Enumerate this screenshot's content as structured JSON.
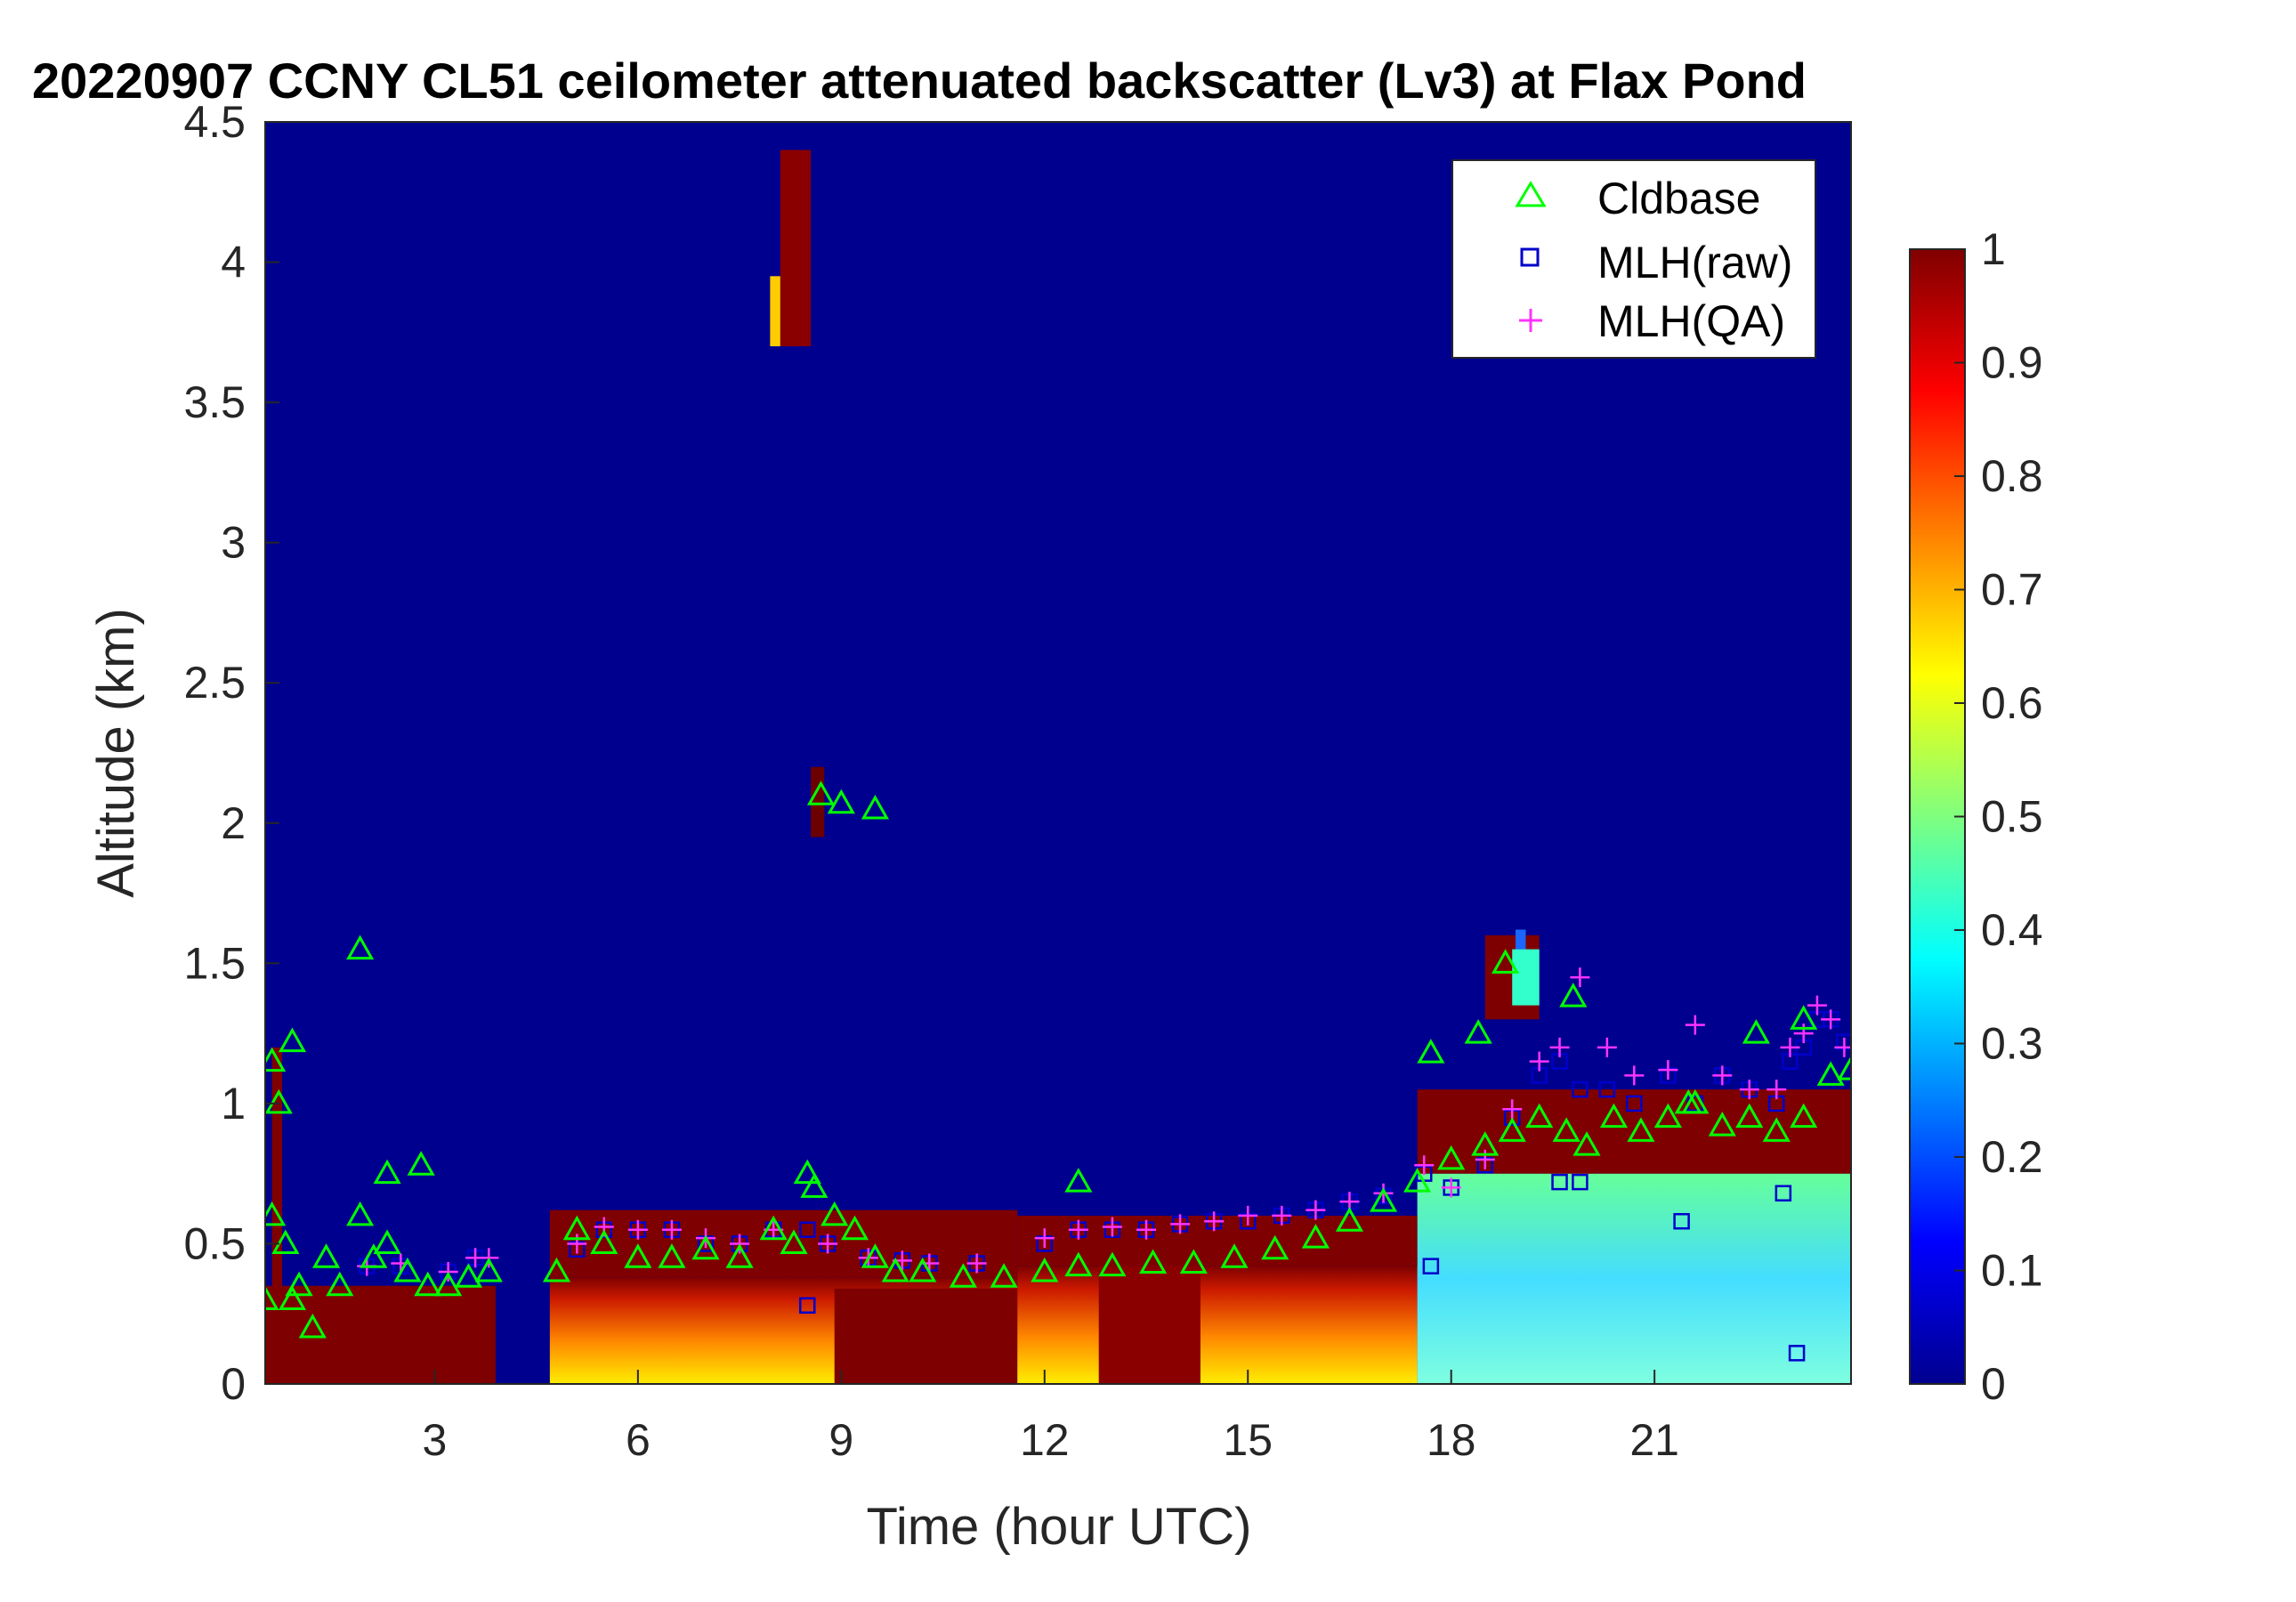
{
  "chart_data": {
    "type": "heatmap",
    "title": "20220907 CCNY CL51 ceilometer attenuated backscatter (Lv3) at Flax Pond",
    "xlabel": "Time (hour UTC)",
    "ylabel": "Altitude (km)",
    "xlim": [
      0.5,
      23.9
    ],
    "ylim": [
      0,
      4.5
    ],
    "xticks": [
      "3",
      "6",
      "9",
      "12",
      "15",
      "18",
      "21"
    ],
    "yticks": [
      "0",
      "0.5",
      "1",
      "1.5",
      "2",
      "2.5",
      "3",
      "3.5",
      "4",
      "4.5"
    ],
    "colorbar": {
      "range": [
        0,
        1
      ],
      "colormap": "jet",
      "ticks": [
        "0",
        "0.1",
        "0.2",
        "0.3",
        "0.4",
        "0.5",
        "0.6",
        "0.7",
        "0.8",
        "0.9",
        "1"
      ]
    },
    "legend": {
      "placement": "top-right",
      "entries": [
        {
          "label": "Cldbase",
          "marker": "triangle",
          "color": "#00ff00"
        },
        {
          "label": "MLH(raw)",
          "marker": "square",
          "color": "#0000cc"
        },
        {
          "label": "MLH(QA)",
          "marker": "plus",
          "color": "#ff33ff"
        }
      ]
    },
    "series": [
      {
        "name": "Cldbase",
        "x": [
          0.5,
          0.6,
          0.7,
          0.8,
          0.9,
          1.0,
          1.2,
          1.4,
          1.6,
          1.9,
          2.1,
          2.3,
          2.6,
          2.9,
          3.2,
          3.5,
          3.8,
          4.8,
          5.1,
          5.5,
          6.0,
          6.5,
          7.0,
          7.5,
          8.0,
          8.3,
          8.6,
          8.9,
          9.2,
          9.5,
          9.8,
          10.2,
          10.8,
          11.4,
          12.0,
          12.5,
          13.0,
          13.6,
          14.2,
          14.8,
          15.4,
          16.0,
          16.5,
          17.0,
          17.5,
          18.0,
          18.5,
          18.9,
          19.3,
          19.7,
          20.0,
          20.4,
          20.8,
          21.2,
          21.6,
          22.0,
          22.4,
          22.8,
          23.2,
          23.6,
          23.9,
          0.6,
          0.9,
          1.9,
          2.3,
          2.8,
          8.5,
          8.7,
          9.0,
          9.5,
          12.5,
          17.7,
          18.4,
          18.8,
          19.8,
          21.5,
          22.5,
          23.2
        ],
        "y": [
          0.3,
          0.6,
          1.0,
          0.5,
          0.3,
          0.35,
          0.2,
          0.45,
          0.35,
          0.6,
          0.45,
          0.5,
          0.4,
          0.35,
          0.35,
          0.38,
          0.4,
          0.4,
          0.55,
          0.5,
          0.45,
          0.45,
          0.48,
          0.45,
          0.55,
          0.5,
          0.7,
          0.6,
          0.55,
          0.45,
          0.4,
          0.4,
          0.38,
          0.38,
          0.4,
          0.42,
          0.42,
          0.43,
          0.43,
          0.45,
          0.48,
          0.52,
          0.58,
          0.65,
          0.72,
          0.8,
          0.85,
          0.9,
          0.95,
          0.9,
          0.85,
          0.95,
          0.9,
          0.95,
          1.0,
          0.92,
          0.95,
          0.9,
          0.95,
          1.1,
          1.12,
          1.15,
          1.22,
          1.55,
          0.75,
          0.78,
          0.75,
          2.1,
          2.07,
          2.05,
          0.72,
          1.18,
          1.25,
          1.5,
          1.38,
          1.0,
          1.25,
          1.3
        ],
        "__comment": ""
      },
      {
        "name": "MLH(raw)",
        "x": [
          2.0,
          2.5,
          3.2,
          3.6,
          5.1,
          5.5,
          6.0,
          6.5,
          7.0,
          7.5,
          8.0,
          8.5,
          8.8,
          9.4,
          9.9,
          10.3,
          11.0,
          12.0,
          12.5,
          13.0,
          13.5,
          14.0,
          14.5,
          15.0,
          15.5,
          16.0,
          16.5,
          17.0,
          17.6,
          18.0,
          18.5,
          18.9,
          19.3,
          19.6,
          19.9,
          20.3,
          20.7,
          21.2,
          21.6,
          22.0,
          22.4,
          22.8,
          23.0,
          23.2,
          23.4,
          23.6,
          23.8,
          8.5,
          17.7,
          19.6,
          19.9,
          21.4,
          22.9,
          23.1
        ],
        "y": [
          0.42,
          0.42,
          0.4,
          0.45,
          0.48,
          0.55,
          0.55,
          0.55,
          0.5,
          0.5,
          0.55,
          0.55,
          0.5,
          0.45,
          0.44,
          0.43,
          0.43,
          0.5,
          0.55,
          0.55,
          0.55,
          0.57,
          0.58,
          0.58,
          0.6,
          0.62,
          0.65,
          0.67,
          0.75,
          0.7,
          0.78,
          0.95,
          1.1,
          1.15,
          1.05,
          1.05,
          1.0,
          1.1,
          1.0,
          1.1,
          1.05,
          1.0,
          1.15,
          1.2,
          1.3,
          1.3,
          1.22,
          0.28,
          0.42,
          0.72,
          0.72,
          0.58,
          0.68,
          0.11
        ]
      },
      {
        "name": "MLH(QA)",
        "x": [
          2.0,
          2.5,
          3.2,
          3.6,
          3.8,
          5.1,
          5.5,
          6.0,
          6.5,
          7.0,
          7.5,
          8.0,
          8.8,
          9.4,
          9.9,
          10.3,
          11.0,
          12.0,
          12.5,
          13.0,
          13.5,
          14.0,
          14.5,
          15.0,
          15.5,
          16.0,
          16.5,
          17.0,
          17.6,
          18.0,
          18.5,
          18.9,
          19.3,
          19.6,
          19.9,
          20.3,
          20.7,
          21.2,
          21.6,
          22.0,
          22.4,
          22.8,
          23.0,
          23.2,
          23.4,
          23.6,
          23.8
        ],
        "y": [
          0.42,
          0.43,
          0.4,
          0.45,
          0.45,
          0.5,
          0.56,
          0.55,
          0.55,
          0.52,
          0.5,
          0.55,
          0.5,
          0.45,
          0.44,
          0.43,
          0.43,
          0.52,
          0.55,
          0.56,
          0.55,
          0.57,
          0.58,
          0.6,
          0.6,
          0.62,
          0.65,
          0.68,
          0.78,
          0.7,
          0.8,
          0.98,
          1.15,
          1.2,
          1.45,
          1.2,
          1.1,
          1.12,
          1.28,
          1.1,
          1.05,
          1.05,
          1.2,
          1.25,
          1.35,
          1.3,
          1.2
        ]
      }
    ]
  }
}
